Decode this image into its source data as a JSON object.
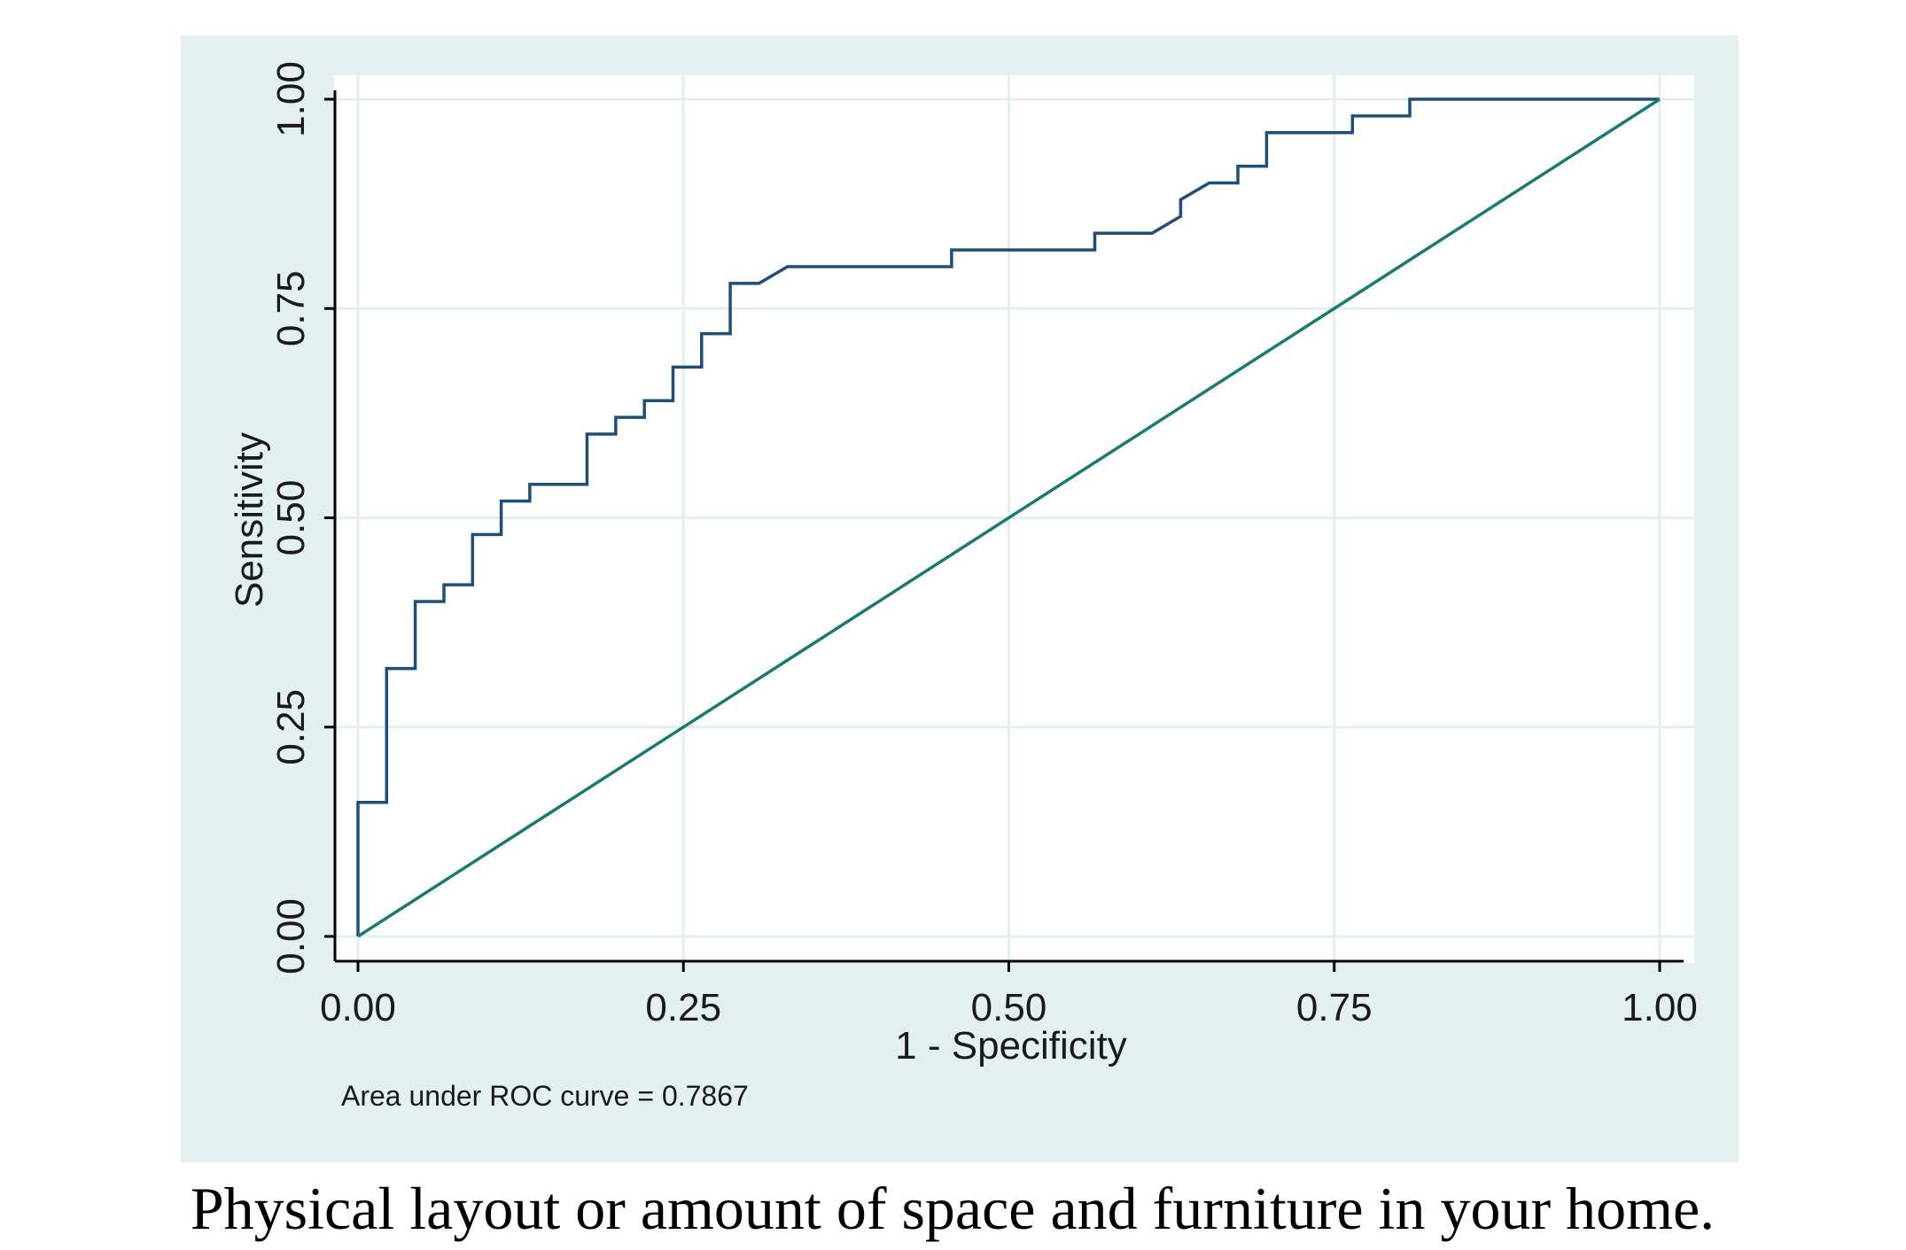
{
  "chart_data": {
    "type": "line",
    "xlabel": "1 - Specificity",
    "ylabel": "Sensitivity",
    "xlim": [
      0,
      1
    ],
    "ylim": [
      0,
      1
    ],
    "x_ticks": [
      "0.00",
      "0.25",
      "0.50",
      "0.75",
      "1.00"
    ],
    "y_ticks": [
      "0.00",
      "0.25",
      "0.50",
      "0.75",
      "1.00"
    ],
    "grid": true,
    "note": "Area under ROC curve = 0.7867",
    "series": [
      {
        "style": "step",
        "color": "#1f4e79",
        "points": [
          [
            0.0,
            0.0
          ],
          [
            0.0,
            0.16
          ],
          [
            0.022,
            0.16
          ],
          [
            0.022,
            0.32
          ],
          [
            0.044,
            0.32
          ],
          [
            0.044,
            0.4
          ],
          [
            0.066,
            0.4
          ],
          [
            0.066,
            0.42
          ],
          [
            0.088,
            0.42
          ],
          [
            0.088,
            0.48
          ],
          [
            0.11,
            0.48
          ],
          [
            0.11,
            0.52
          ],
          [
            0.132,
            0.52
          ],
          [
            0.132,
            0.54
          ],
          [
            0.176,
            0.54
          ],
          [
            0.176,
            0.6
          ],
          [
            0.198,
            0.6
          ],
          [
            0.198,
            0.62
          ],
          [
            0.22,
            0.62
          ],
          [
            0.22,
            0.64
          ],
          [
            0.242,
            0.64
          ],
          [
            0.242,
            0.68
          ],
          [
            0.264,
            0.68
          ],
          [
            0.264,
            0.72
          ],
          [
            0.286,
            0.72
          ],
          [
            0.286,
            0.78
          ],
          [
            0.308,
            0.78
          ],
          [
            0.33,
            0.8
          ],
          [
            0.456,
            0.8
          ],
          [
            0.456,
            0.82
          ],
          [
            0.566,
            0.82
          ],
          [
            0.566,
            0.84
          ],
          [
            0.61,
            0.84
          ],
          [
            0.632,
            0.86
          ],
          [
            0.632,
            0.88
          ],
          [
            0.654,
            0.9
          ],
          [
            0.676,
            0.9
          ],
          [
            0.676,
            0.92
          ],
          [
            0.698,
            0.92
          ],
          [
            0.698,
            0.96
          ],
          [
            0.764,
            0.96
          ],
          [
            0.764,
            0.98
          ],
          [
            0.808,
            0.98
          ],
          [
            0.808,
            1.0
          ],
          [
            1.0,
            1.0
          ]
        ]
      },
      {
        "style": "line",
        "color": "#1a7a6e",
        "points": [
          [
            0,
            0
          ],
          [
            1,
            1
          ]
        ]
      }
    ]
  },
  "caption": "Physical layout or amount of space and furniture in your home.",
  "colors": {
    "outer_bg": "#e4f0f0",
    "plot_bg": "#ffffff",
    "grid": "#e3efef",
    "axis": "#000000"
  }
}
